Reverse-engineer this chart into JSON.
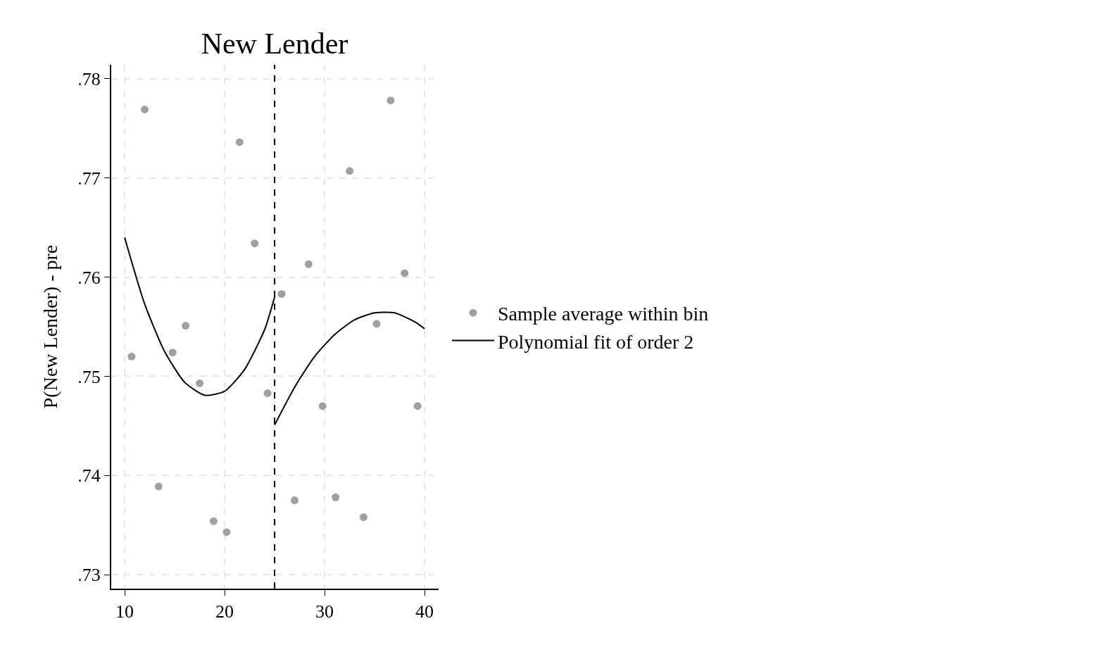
{
  "chart_data": {
    "type": "scatter",
    "title": "New Lender",
    "ylabel": "P(New Lender) - pre",
    "xlim": [
      8.66,
      41.4
    ],
    "ylim": [
      0.7286,
      0.7814
    ],
    "xticks": [
      10,
      20,
      30,
      40
    ],
    "yticks": [
      {
        "value": 0.73,
        "label": ".73"
      },
      {
        "value": 0.74,
        "label": ".74"
      },
      {
        "value": 0.75,
        "label": ".75"
      },
      {
        "value": 0.76,
        "label": ".76"
      },
      {
        "value": 0.77,
        "label": ".77"
      },
      {
        "value": 0.78,
        "label": ".78"
      }
    ],
    "grid": true,
    "legend": "right",
    "marker": "circle",
    "ref_lines": [
      {
        "axis": "x",
        "value": 25,
        "color": "#000000",
        "line_style": "dashed"
      }
    ],
    "series": [
      {
        "name": "Sample average within bin",
        "color": "#a0a0a0",
        "x": [
          10.7,
          12.0,
          13.4,
          14.8,
          16.1,
          17.5,
          18.9,
          20.2,
          21.5,
          23.0,
          24.3,
          25.7,
          27.0,
          28.4,
          29.8,
          31.1,
          32.5,
          33.9,
          35.2,
          36.6,
          38.0,
          39.3
        ],
        "values": [
          0.752,
          0.7769,
          0.7389,
          0.7524,
          0.7551,
          0.7493,
          0.7354,
          0.7343,
          0.7736,
          0.7634,
          0.7483,
          0.7583,
          0.7375,
          0.7613,
          0.747,
          0.7378,
          0.7707,
          0.7358,
          0.7553,
          0.7778,
          0.7604,
          0.747
        ]
      },
      {
        "type": "line",
        "name": "Polynomial fit of order 2",
        "color": "#000000",
        "line_style": "solid",
        "marker": "none",
        "x": [
          10,
          12,
          14,
          16,
          18,
          20,
          22,
          24,
          25
        ],
        "values": [
          0.764,
          0.7573,
          0.7525,
          0.7494,
          0.7481,
          0.7485,
          0.7507,
          0.7547,
          0.758
        ]
      },
      {
        "type": "line",
        "color": "#000000",
        "line_style": "solid",
        "marker": "none",
        "x": [
          25,
          27,
          29,
          31,
          33,
          35,
          37,
          39,
          40
        ],
        "values": [
          0.7451,
          0.7489,
          0.752,
          0.7542,
          0.7557,
          0.7564,
          0.7564,
          0.7555,
          0.7548
        ]
      }
    ]
  }
}
